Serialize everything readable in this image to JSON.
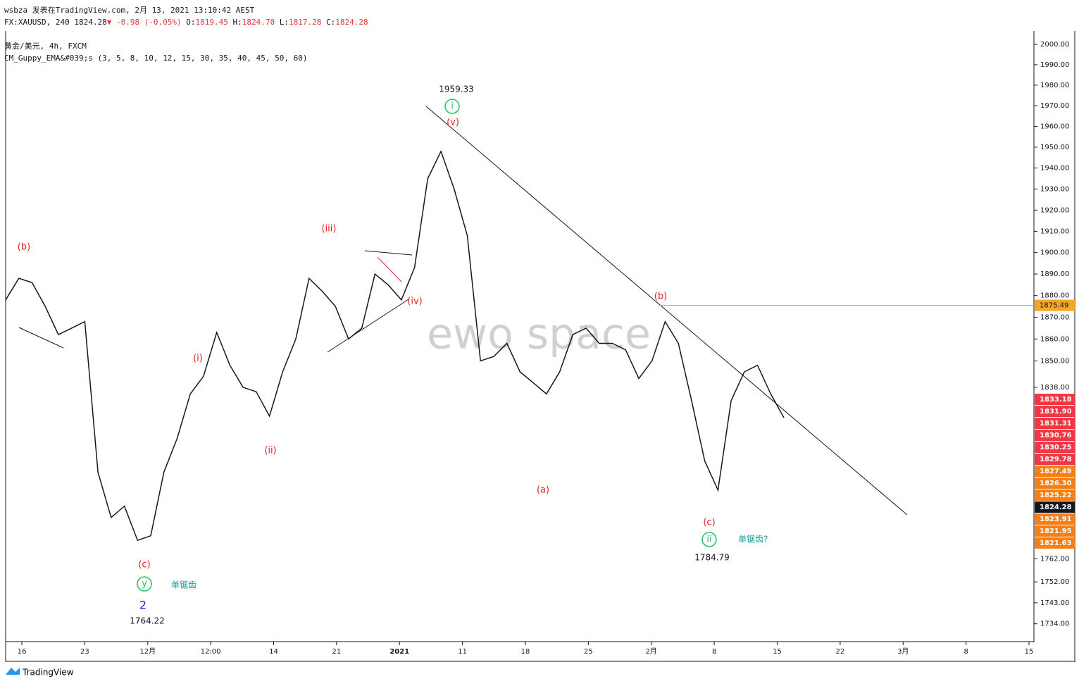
{
  "header": {
    "byline": "wsbza 发表在TradingView.com, 2月 13, 2021 13:10:42 AEST",
    "symbol": "FX:XAUUSD, 240",
    "last": "1824.28",
    "change": "▼ -0.98 (-0.05%)",
    "ohlc": [
      {
        "key": "O:",
        "value": "1819.45"
      },
      {
        "key": "H:",
        "value": "1824.70"
      },
      {
        "key": "L:",
        "value": "1817.28"
      },
      {
        "key": "C:",
        "value": "1824.28"
      }
    ]
  },
  "legend": {
    "instrument": "黄金/美元, 4h, FXCM",
    "indicator": "CM_Guppy_EMA&#039;s (3, 5, 8, 10, 12, 15, 30, 35, 40, 45, 50, 60)"
  },
  "watermark": "ewo space",
  "footer": "TradingView",
  "chart_data": {
    "type": "line",
    "log_scale": true,
    "color": "#131722",
    "ylim": [
      1726.7,
      2006.6
    ],
    "yticks": [
      {
        "value": 2000,
        "label": "2000.00"
      },
      {
        "value": 1990,
        "label": "1990.00"
      },
      {
        "value": 1980,
        "label": "1980.00"
      },
      {
        "value": 1970,
        "label": "1970.00"
      },
      {
        "value": 1960,
        "label": "1960.00"
      },
      {
        "value": 1950,
        "label": "1950.00"
      },
      {
        "value": 1940,
        "label": "1940.00"
      },
      {
        "value": 1930,
        "label": "1930.00"
      },
      {
        "value": 1920,
        "label": "1920.00"
      },
      {
        "value": 1910,
        "label": "1910.00"
      },
      {
        "value": 1900,
        "label": "1900.00"
      },
      {
        "value": 1890,
        "label": "1890.00"
      },
      {
        "value": 1880,
        "label": "1880.00"
      },
      {
        "value": 1870,
        "label": "1870.00"
      },
      {
        "value": 1860,
        "label": "1860.00"
      },
      {
        "value": 1850,
        "label": "1850.00"
      },
      {
        "value": 1838,
        "label": "1838.00"
      },
      {
        "value": 1762,
        "label": "1762.00"
      },
      {
        "value": 1752,
        "label": "1752.00"
      },
      {
        "value": 1743,
        "label": "1743.00"
      },
      {
        "value": 1734,
        "label": "1734.00"
      }
    ],
    "x_labels": [
      "16",
      "23",
      "12月",
      "12:00",
      "14",
      "21",
      "2021",
      "11",
      "18",
      "25",
      "2月",
      "8",
      "15",
      "22",
      "3月",
      "8",
      "15"
    ],
    "values": [
      1878,
      1888,
      1886,
      1875,
      1862,
      1865,
      1868,
      1800,
      1780,
      1785,
      1770,
      1772,
      1800,
      1815,
      1835,
      1843,
      1863,
      1848,
      1838,
      1836,
      1825,
      1845,
      1860,
      1888,
      1882,
      1875,
      1860,
      1865,
      1890,
      1885,
      1878,
      1893,
      1935,
      1948,
      1930,
      1908,
      1850,
      1852,
      1858,
      1845,
      1840,
      1835,
      1845,
      1862,
      1865,
      1858,
      1858,
      1855,
      1842,
      1850,
      1868,
      1858,
      1832,
      1805,
      1792,
      1832,
      1845,
      1848,
      1835,
      1824.28
    ],
    "hline": {
      "value": 1875.49,
      "color": "#f5a623"
    },
    "price_labels": [
      {
        "value": 1833.18,
        "color": "#f23645"
      },
      {
        "value": 1831.9,
        "label": "1831.90",
        "color": "#f23645"
      },
      {
        "value": 1831.31,
        "color": "#f23645"
      },
      {
        "value": 1830.76,
        "color": "#f23645"
      },
      {
        "value": 1830.25,
        "color": "#f23645"
      },
      {
        "value": 1829.78,
        "color": "#f23645"
      },
      {
        "value": 1827.49,
        "color": "#f57f17"
      },
      {
        "value": 1826.3,
        "label": "1826.30",
        "color": "#f57f17"
      },
      {
        "value": 1825.22,
        "color": "#f57f17"
      },
      {
        "value": 1824.28,
        "color": "#131722"
      },
      {
        "value": 1823.91,
        "color": "#f57f17"
      },
      {
        "value": 1821.95,
        "color": "#f57f17"
      },
      {
        "value": 1821.63,
        "color": "#f57f17"
      }
    ],
    "annotations": [
      {
        "text": "(b)",
        "color": "#e02020"
      },
      {
        "text": "(c)",
        "color": "#e02020"
      },
      {
        "text": "(i)",
        "color": "#e02020"
      },
      {
        "text": "(ii)",
        "color": "#e02020"
      },
      {
        "text": "(iii)",
        "color": "#e02020"
      },
      {
        "text": "(iv)",
        "color": "#e02020"
      },
      {
        "text": "(v)",
        "color": "#e02020"
      },
      {
        "text": "(a)",
        "color": "#e02020"
      },
      {
        "text": "(b)",
        "color": "#e02020"
      },
      {
        "text": "(c)",
        "color": "#e02020"
      },
      {
        "text": "i",
        "color": "#22c55e",
        "circled": true
      },
      {
        "text": "ii",
        "color": "#22c55e",
        "circled": true
      },
      {
        "text": "y",
        "color": "#22c55e",
        "circled": true
      },
      {
        "text": "2",
        "color": "#1030e0"
      },
      {
        "text": "单锯齿",
        "color": "#159a9a"
      },
      {
        "text": "单锯齿?",
        "color": "#159a9a"
      }
    ],
    "price_notes": [
      1959.33,
      1764.22,
      1784.79
    ]
  }
}
